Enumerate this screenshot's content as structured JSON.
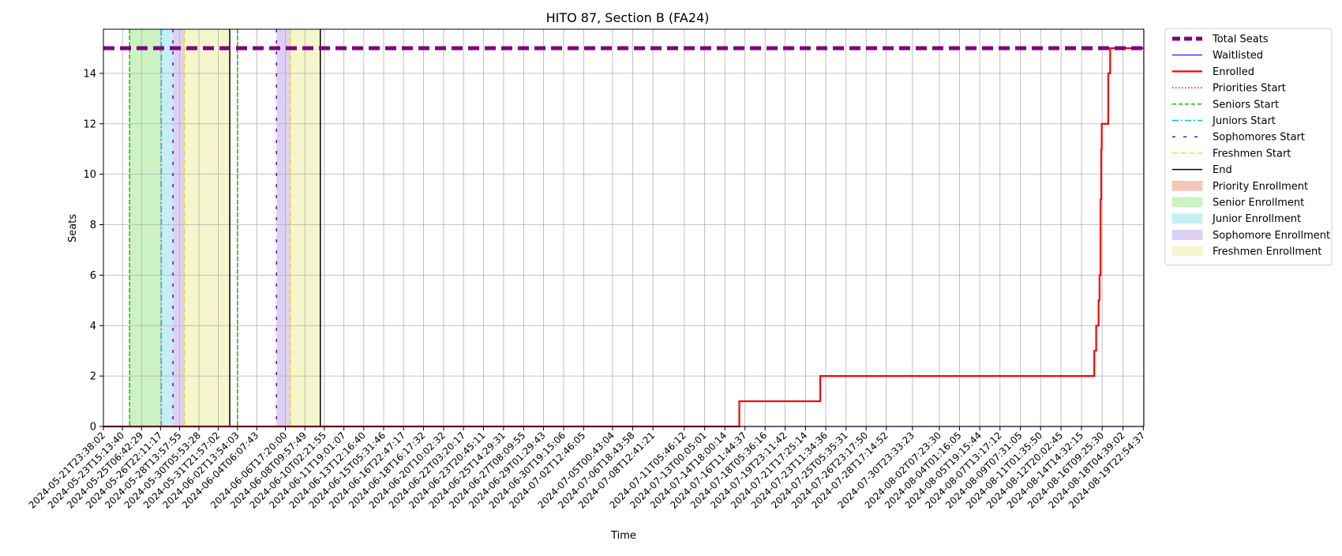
{
  "chart_data": {
    "type": "line",
    "title": "HITO 87, Section B (FA24)",
    "xlabel": "Time",
    "ylabel": "Seats",
    "xlim": [
      "2024-05-21T23:38:02",
      "2024-08-20T00:00:00"
    ],
    "ylim": [
      0,
      15.75
    ],
    "yticks": [
      0,
      2,
      4,
      6,
      8,
      10,
      12,
      14
    ],
    "xticks": [
      "2024-05-21T23:38:02",
      "2024-05-23T15:13:40",
      "2024-05-25T06:42:29",
      "2024-05-26T22:11:17",
      "2024-05-28T13:57:55",
      "2024-05-30T05:53:28",
      "2024-05-31T21:57:02",
      "2024-06-02T13:54:03",
      "2024-06-04T06:07:43",
      "2024-06-06T17:20:00",
      "2024-06-08T09:57:49",
      "2024-06-10T02:21:55",
      "2024-06-11T19:01:07",
      "2024-06-13T12:16:40",
      "2024-06-15T05:31:46",
      "2024-06-16T22:47:17",
      "2024-06-18T16:17:32",
      "2024-06-20T10:02:32",
      "2024-06-22T03:20:17",
      "2024-06-23T20:45:11",
      "2024-06-25T14:29:31",
      "2024-06-27T08:09:55",
      "2024-06-29T01:29:43",
      "2024-06-30T19:15:06",
      "2024-07-02T12:46:05",
      "2024-07-05T00:43:04",
      "2024-07-06T18:43:58",
      "2024-07-08T12:41:21",
      "2024-07-11T05:46:12",
      "2024-07-13T00:05:01",
      "2024-07-14T18:00:14",
      "2024-07-16T11:44:37",
      "2024-07-18T05:36:16",
      "2024-07-19T23:11:42",
      "2024-07-21T17:25:14",
      "2024-07-23T11:34:36",
      "2024-07-25T05:35:31",
      "2024-07-26T23:17:50",
      "2024-07-28T17:14:52",
      "2024-07-30T23:33:23",
      "2024-08-02T07:23:30",
      "2024-08-04T01:16:05",
      "2024-08-05T19:15:44",
      "2024-08-07T13:17:12",
      "2024-08-09T07:31:05",
      "2024-08-11T01:35:50",
      "2024-08-12T20:02:45",
      "2024-08-14T14:32:15",
      "2024-08-16T09:25:30",
      "2024-08-18T04:39:02",
      "2024-08-19T22:54:37"
    ],
    "grid": true,
    "legend_position": "outside-right",
    "series": [
      {
        "name": "Total Seats",
        "style": "dashed-thick",
        "color": "#800080",
        "points": [
          [
            "2024-05-21T23:38:02",
            15
          ],
          [
            "2024-08-20T00:00:00",
            15
          ]
        ]
      },
      {
        "name": "Waitlisted",
        "style": "solid-thin",
        "color": "#0000ff",
        "points": [
          [
            "2024-05-21T23:38:02",
            0
          ],
          [
            "2024-08-20T00:00:00",
            0
          ]
        ]
      },
      {
        "name": "Enrolled",
        "style": "step",
        "color": "#ff0000",
        "points": [
          [
            "2024-05-21T23:38:02",
            0
          ],
          [
            "2024-07-16T00:00:00",
            1
          ],
          [
            "2024-07-23T00:00:00",
            2
          ],
          [
            "2024-08-15T17:00:00",
            3
          ],
          [
            "2024-08-15T21:00:00",
            4
          ],
          [
            "2024-08-16T02:00:00",
            5
          ],
          [
            "2024-08-16T04:00:00",
            6
          ],
          [
            "2024-08-16T06:00:00",
            9
          ],
          [
            "2024-08-16T07:30:00",
            11
          ],
          [
            "2024-08-16T08:30:00",
            12
          ],
          [
            "2024-08-16T22:00:00",
            14
          ],
          [
            "2024-08-17T02:00:00",
            15
          ],
          [
            "2024-08-20T00:00:00",
            15
          ]
        ]
      }
    ],
    "period_lines": [
      {
        "name": "Priorities Start",
        "style": "dotted",
        "color": "#ff0000",
        "times": [
          "2024-05-24T06:00:00",
          "2024-06-02T14:00:00"
        ]
      },
      {
        "name": "Seniors Start",
        "style": "dashed",
        "color": "#00cc00",
        "times": [
          "2024-05-24T06:00:00",
          "2024-06-02T14:00:00"
        ]
      },
      {
        "name": "Juniors Start",
        "style": "dashdot",
        "color": "#00cccc",
        "times": [
          "2024-05-27T00:00:00"
        ]
      },
      {
        "name": "Sophomores Start",
        "style": "loosedash",
        "color": "#6600cc",
        "times": [
          "2024-05-28T00:00:00",
          "2024-06-05T23:00:00"
        ]
      },
      {
        "name": "Freshmen Start",
        "style": "dashdot-thin",
        "color": "#e6d800",
        "times": [
          "2024-05-29T00:00:00",
          "2024-06-07T04:00:00"
        ]
      },
      {
        "name": "End",
        "style": "solid",
        "color": "#000000",
        "times": [
          "2024-06-01T22:00:00",
          "2024-06-09T18:00:00"
        ]
      }
    ],
    "enrollment_periods": [
      {
        "name": "Priority Enrollment",
        "color": "#f4c7b8",
        "ranges": []
      },
      {
        "name": "Senior Enrollment",
        "color": "#ccf2c4",
        "ranges": [
          [
            "2024-05-24T06:00:00",
            "2024-05-27T00:00:00"
          ]
        ]
      },
      {
        "name": "Junior Enrollment",
        "color": "#c7eef4",
        "ranges": [
          [
            "2024-05-27T00:00:00",
            "2024-05-28T00:00:00"
          ]
        ]
      },
      {
        "name": "Sophomore Enrollment",
        "color": "#ddd0f2",
        "ranges": [
          [
            "2024-05-28T00:00:00",
            "2024-05-29T00:00:00"
          ],
          [
            "2024-06-05T23:00:00",
            "2024-06-07T04:00:00"
          ]
        ]
      },
      {
        "name": "Freshmen Enrollment",
        "color": "#f6f6cc",
        "ranges": [
          [
            "2024-05-29T00:00:00",
            "2024-06-01T22:00:00"
          ],
          [
            "2024-06-07T04:00:00",
            "2024-06-09T18:00:00"
          ]
        ]
      }
    ]
  }
}
